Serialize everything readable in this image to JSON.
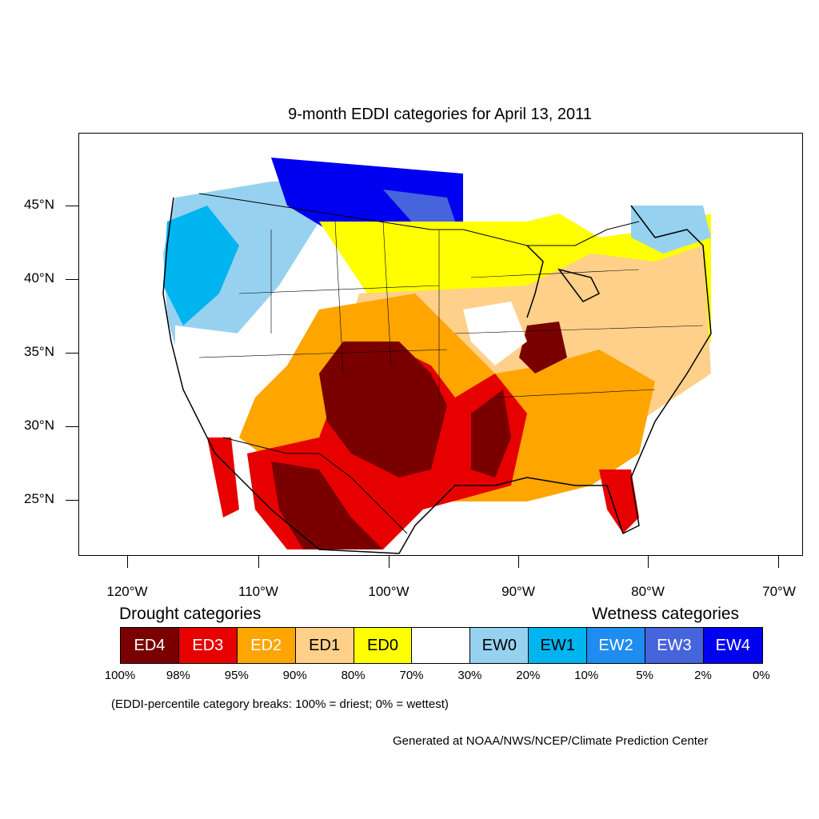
{
  "title": "9-month EDDI categories for April 13, 2011",
  "lat_labels": [
    "45°N",
    "40°N",
    "35°N",
    "30°N",
    "25°N"
  ],
  "lon_labels": [
    "120°W",
    "110°W",
    "100°W",
    "90°W",
    "80°W",
    "70°W"
  ],
  "legend": {
    "drought_heading": "Drought categories",
    "wetness_heading": "Wetness categories",
    "categories": [
      {
        "label": "ED4",
        "color": "#7a0000",
        "text_color": "#ffffff"
      },
      {
        "label": "ED3",
        "color": "#e60000",
        "text_color": "#ffffff"
      },
      {
        "label": "ED2",
        "color": "#ffa500",
        "text_color": "#ffffff"
      },
      {
        "label": "ED1",
        "color": "#ffd08a",
        "text_color": "#000000"
      },
      {
        "label": "ED0",
        "color": "#ffff00",
        "text_color": "#000000"
      },
      {
        "label": "",
        "color": "#ffffff",
        "text_color": "#000000"
      },
      {
        "label": "EW0",
        "color": "#96d2f0",
        "text_color": "#000000"
      },
      {
        "label": "EW1",
        "color": "#00b4f0",
        "text_color": "#000000"
      },
      {
        "label": "EW2",
        "color": "#1e8cf0",
        "text_color": "#ffffff"
      },
      {
        "label": "EW3",
        "color": "#4664dc",
        "text_color": "#ffffff"
      },
      {
        "label": "EW4",
        "color": "#0000f0",
        "text_color": "#ffffff"
      }
    ],
    "breaks": [
      "100%",
      "98%",
      "95%",
      "90%",
      "80%",
      "70%",
      "30%",
      "20%",
      "10%",
      "5%",
      "2%",
      "0%"
    ]
  },
  "note": "(EDDI-percentile category breaks: 100% = driest; 0% = wettest)",
  "credit": "Generated at NOAA/NWS/NCEP/Climate Prediction Center"
}
